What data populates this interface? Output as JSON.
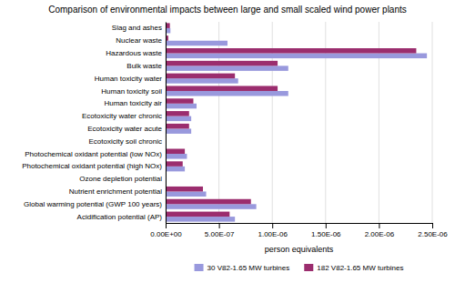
{
  "chart_data": {
    "type": "bar",
    "orientation": "horizontal",
    "title": "Comparison of environmental impacts between large and small scaled wind power plants",
    "xlabel": "person equivalents",
    "categories": [
      "Slag and ashes",
      "Nuclear waste",
      "Hazardous waste",
      "Bulk waste",
      "Human toxicity water",
      "Human toxicity soil",
      "Human toxicity air",
      "Ecotoxicity water chronic",
      "Ecotoxicity water acute",
      "Ecotoxicity soil chronic",
      "Photochemical oxidant potential (low NOx)",
      "Photochemical oxidant potential (high NOx)",
      "Ozone depletion potential",
      "Nutrient enrichment potential",
      "Global warming potential (GWP 100 years)",
      "Acidification potential (AP)"
    ],
    "series": [
      {
        "name": "30 V82-1.65 MW turbines",
        "color": "#9999DD",
        "values": [
          4.5e-08,
          5.8e-07,
          2.45e-06,
          1.15e-06,
          6.8e-07,
          1.15e-06,
          2.9e-07,
          2.4e-07,
          2.4e-07,
          2e-09,
          2e-07,
          1.8e-07,
          8e-10,
          3.8e-07,
          8.5e-07,
          6.5e-07
        ]
      },
      {
        "name": "182 V82-1.65 MW turbines",
        "color": "#9B2D6E",
        "values": [
          4e-08,
          2.5e-08,
          2.35e-06,
          1.05e-06,
          6.5e-07,
          1.05e-06,
          2.6e-07,
          2.2e-07,
          2.2e-07,
          1e-09,
          1.8e-07,
          1.6e-07,
          5e-10,
          3.5e-07,
          8e-07,
          6e-07
        ]
      }
    ],
    "xlim": [
      0,
      2.5e-06
    ],
    "xticks": [
      {
        "value": 0,
        "label": "0.00E+00"
      },
      {
        "value": 5e-07,
        "label": "5.00E-07"
      },
      {
        "value": 1e-06,
        "label": "1.00E-06"
      },
      {
        "value": 1.5e-06,
        "label": "1.50E-06"
      },
      {
        "value": 2e-06,
        "label": "2.00E-06"
      },
      {
        "value": 2.5e-06,
        "label": "2.50E-06"
      }
    ],
    "grid": true,
    "legend": "bottom"
  }
}
